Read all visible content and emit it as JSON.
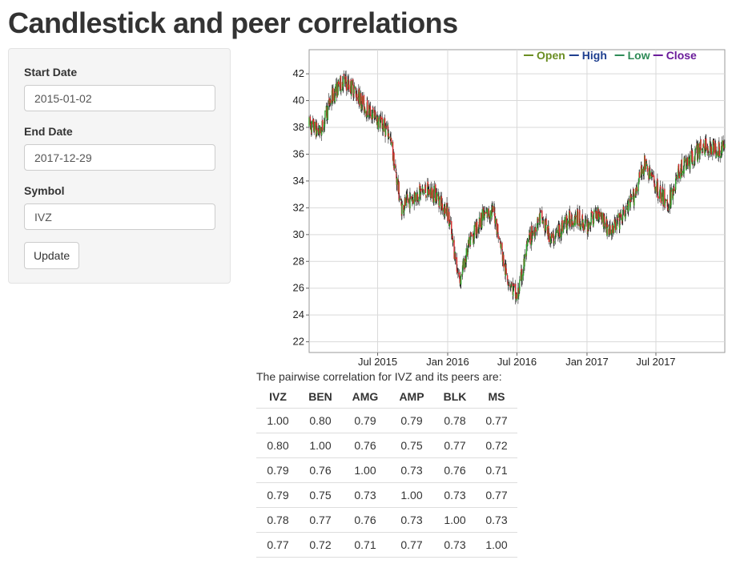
{
  "page": {
    "title": "Candlestick and peer correlations"
  },
  "sidebar": {
    "start_label": "Start Date",
    "start_value": "2015-01-02",
    "end_label": "End Date",
    "end_value": "2017-12-29",
    "symbol_label": "Symbol",
    "symbol_value": "IVZ",
    "update_label": "Update"
  },
  "chart_data": {
    "type": "candlestick",
    "symbol": "IVZ",
    "x_ticks": [
      "Jul 2015",
      "Jan 2016",
      "Jul 2016",
      "Jan 2017",
      "Jul 2017"
    ],
    "y_ticks": [
      22,
      24,
      26,
      28,
      30,
      32,
      34,
      36,
      38,
      40,
      42
    ],
    "ylim": [
      21.2,
      43.8
    ],
    "xlim": [
      "2015-01-02",
      "2017-12-29"
    ],
    "grid": true,
    "legend": [
      "Open",
      "High",
      "Low",
      "Close"
    ],
    "legend_position": "top-right",
    "legend_colors": [
      "#6b8e23",
      "#1f3f8f",
      "#2e8b57",
      "#6a1b9a"
    ],
    "up_color": "#2ca02c",
    "down_color": "#d62728",
    "approx_close_path": [
      [
        "2015-01-02",
        38.2
      ],
      [
        "2015-02-01",
        37.6
      ],
      [
        "2015-03-01",
        40.2
      ],
      [
        "2015-04-01",
        41.5
      ],
      [
        "2015-05-01",
        40.8
      ],
      [
        "2015-06-01",
        39.4
      ],
      [
        "2015-07-01",
        38.6
      ],
      [
        "2015-08-01",
        37.5
      ],
      [
        "2015-09-01",
        32.0
      ],
      [
        "2015-10-01",
        32.8
      ],
      [
        "2015-11-01",
        33.3
      ],
      [
        "2015-12-01",
        33.0
      ],
      [
        "2016-01-01",
        31.6
      ],
      [
        "2016-02-01",
        26.5
      ],
      [
        "2016-03-01",
        29.6
      ],
      [
        "2016-04-01",
        31.3
      ],
      [
        "2016-05-01",
        31.8
      ],
      [
        "2016-06-01",
        27.2
      ],
      [
        "2016-07-01",
        25.2
      ],
      [
        "2016-08-01",
        29.6
      ],
      [
        "2016-09-01",
        31.3
      ],
      [
        "2016-10-01",
        29.6
      ],
      [
        "2016-11-01",
        30.8
      ],
      [
        "2016-12-01",
        31.4
      ],
      [
        "2017-01-01",
        30.6
      ],
      [
        "2017-02-01",
        31.8
      ],
      [
        "2017-03-01",
        30.2
      ],
      [
        "2017-04-01",
        31.2
      ],
      [
        "2017-05-01",
        32.6
      ],
      [
        "2017-06-01",
        35.3
      ],
      [
        "2017-07-01",
        33.6
      ],
      [
        "2017-08-01",
        32.2
      ],
      [
        "2017-09-01",
        34.8
      ],
      [
        "2017-10-01",
        35.6
      ],
      [
        "2017-11-01",
        36.6
      ],
      [
        "2017-12-29",
        36.4
      ]
    ]
  },
  "correlation": {
    "caption": "The pairwise correlation for IVZ and its peers are:",
    "headers": [
      "IVZ",
      "BEN",
      "AMG",
      "AMP",
      "BLK",
      "MS"
    ],
    "rows": [
      [
        "1.00",
        "0.80",
        "0.79",
        "0.79",
        "0.78",
        "0.77"
      ],
      [
        "0.80",
        "1.00",
        "0.76",
        "0.75",
        "0.77",
        "0.72"
      ],
      [
        "0.79",
        "0.76",
        "1.00",
        "0.73",
        "0.76",
        "0.71"
      ],
      [
        "0.79",
        "0.75",
        "0.73",
        "1.00",
        "0.73",
        "0.77"
      ],
      [
        "0.78",
        "0.77",
        "0.76",
        "0.73",
        "1.00",
        "0.73"
      ],
      [
        "0.77",
        "0.72",
        "0.71",
        "0.77",
        "0.73",
        "1.00"
      ]
    ]
  }
}
